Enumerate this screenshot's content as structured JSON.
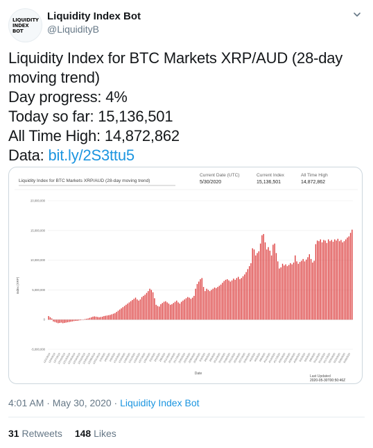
{
  "profile": {
    "avatar_text": "LIQUIDITY INDEX BOT",
    "name": "Liquidity Index Bot",
    "handle": "@LiquidityB"
  },
  "tweet": {
    "line1": "Liquidity Index for BTC Markets XRP/AUD (28-day",
    "line2": "moving trend)",
    "line3": "Day progress: 4%",
    "line4": "Today so far: 15,136,501",
    "line5": "All Time High: 14,872,862",
    "data_label": "Data: ",
    "data_link": "bit.ly/2S3ttu5"
  },
  "card": {
    "header": {
      "current_date_label": "Current Date (UTC)",
      "current_date_value": "5/30/2020",
      "current_index_label": "Current Index",
      "current_index_value": "15,136,501",
      "ath_label": "All Time High",
      "ath_value": "14,872,862"
    },
    "footer": {
      "last_updated_label": "Last Updated",
      "last_updated_value": "2020-05-30T00:50:46Z"
    }
  },
  "chart_data": {
    "type": "bar",
    "title": "Liquidity Index for BTC Markets XRP/AUD (28-day moving trend)",
    "xlabel": "Date",
    "ylabel": "Index (XRP)",
    "ylim": [
      -5000000,
      20000000
    ],
    "yticks": [
      -5000000,
      0,
      5000000,
      10000000,
      15000000,
      20000000
    ],
    "ytick_labels": [
      "-5,000,000",
      "0",
      "5,000,000",
      "10,000,000",
      "15,000,000",
      "20,000,000"
    ],
    "grid": true,
    "color": "#dc3b3b",
    "x_start": "2019-12-01",
    "x_end": "2020-05-30",
    "xtick_labels": [
      "12/1/2019",
      "12/4/2019",
      "12/7/2019",
      "12/10/2019",
      "12/13/2019",
      "12/16/2019",
      "12/19/2019",
      "12/22/2019",
      "12/25/2019",
      "12/28/2019",
      "12/31/2019",
      "1/3/2020",
      "1/6/2020",
      "1/9/2020",
      "1/12/2020",
      "1/15/2020",
      "1/18/2020",
      "1/21/2020",
      "1/24/2020",
      "1/27/2020",
      "1/30/2020",
      "2/2/2020",
      "2/5/2020",
      "2/8/2020",
      "2/11/2020",
      "2/14/2020",
      "2/17/2020",
      "2/20/2020",
      "2/23/2020",
      "2/26/2020",
      "2/29/2020",
      "3/3/2020",
      "3/6/2020",
      "3/9/2020",
      "3/12/2020",
      "3/15/2020",
      "3/18/2020",
      "3/21/2020",
      "3/24/2020",
      "3/27/2020",
      "3/30/2020",
      "4/2/2020",
      "4/5/2020",
      "4/8/2020",
      "4/11/2020",
      "4/14/2020",
      "4/17/2020",
      "4/20/2020",
      "4/23/2020",
      "4/26/2020",
      "4/29/2020",
      "5/2/2020",
      "5/5/2020",
      "5/8/2020",
      "5/11/2020",
      "5/14/2020",
      "5/17/2020",
      "5/20/2020",
      "5/23/2020",
      "5/26/2020",
      "5/29/2020"
    ],
    "values": [
      600000,
      400000,
      200000,
      -300000,
      -400000,
      -500000,
      -600000,
      -550000,
      -500000,
      -600000,
      -550000,
      -500000,
      -450000,
      -400000,
      -350000,
      -300000,
      -250000,
      -200000,
      -200000,
      -150000,
      -100000,
      -50000,
      0,
      100000,
      150000,
      200000,
      300000,
      400000,
      500000,
      550000,
      500000,
      450000,
      400000,
      450000,
      500000,
      600000,
      650000,
      700000,
      750000,
      800000,
      900000,
      1000000,
      1100000,
      1300000,
      1500000,
      1700000,
      1900000,
      2100000,
      2300000,
      2500000,
      2700000,
      2900000,
      3100000,
      3300000,
      3500000,
      3700000,
      3400000,
      3200000,
      3400000,
      3800000,
      4000000,
      4200000,
      4500000,
      4800000,
      5200000,
      5000000,
      4600000,
      3600000,
      2500000,
      2300000,
      2200000,
      2600000,
      2800000,
      3000000,
      3100000,
      2900000,
      2700000,
      2500000,
      2600000,
      2800000,
      3000000,
      3200000,
      2900000,
      2700000,
      3000000,
      3200000,
      3400000,
      3600000,
      3800000,
      3700000,
      3500000,
      3700000,
      4000000,
      5200000,
      6000000,
      6400000,
      6800000,
      7000000,
      5500000,
      4800000,
      5200000,
      5000000,
      4800000,
      5000000,
      5200000,
      5400000,
      5300000,
      5500000,
      5700000,
      5900000,
      6200000,
      6500000,
      6700000,
      6800000,
      6600000,
      6400000,
      6600000,
      6900000,
      6700000,
      7000000,
      7200000,
      6800000,
      7000000,
      7300000,
      7600000,
      8000000,
      8500000,
      9000000,
      9500000,
      12000000,
      11800000,
      10800000,
      11200000,
      11500000,
      12800000,
      14200000,
      14400000,
      13000000,
      11800000,
      12200000,
      11600000,
      10800000,
      12600000,
      12800000,
      11200000,
      9800000,
      8600000,
      8800000,
      9400000,
      9100000,
      9300000,
      9000000,
      9200000,
      9500000,
      9300000,
      9600000,
      10800000,
      9800000,
      9400000,
      9700000,
      9900000,
      10200000,
      9800000,
      10100000,
      10500000,
      11000000,
      10200000,
      9600000,
      9900000,
      12700000,
      13300000,
      13200000,
      13500000,
      13000000,
      13400000,
      13300000,
      12900000,
      13500000,
      13200000,
      13400000,
      13100000,
      13500000,
      13300000,
      13600000,
      13200000,
      13400000,
      13000000,
      13200000,
      13500000,
      13800000,
      14000000,
      14600000,
      15136501
    ]
  },
  "timestamp": {
    "time": "4:01 AM · May 30, 2020 · ",
    "source": "Liquidity Index Bot"
  },
  "stats": {
    "retweets_count": "31",
    "retweets_label": " Retweets",
    "likes_count": "148",
    "likes_label": " Likes"
  }
}
